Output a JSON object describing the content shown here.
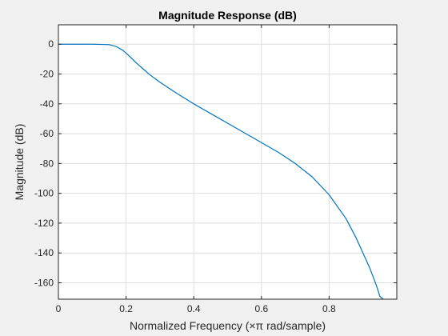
{
  "chart_data": {
    "type": "line",
    "title": "Magnitude Response (dB)",
    "xlabel": "Normalized Frequency (×π rad/sample)",
    "ylabel": "Magnitude (dB)",
    "xlim": [
      0,
      1
    ],
    "ylim": [
      -171,
      13
    ],
    "xticks": [
      0,
      0.2,
      0.4,
      0.6,
      0.8
    ],
    "xtick_labels": [
      "0",
      "0.2",
      "0.4",
      "0.6",
      "0.8"
    ],
    "yticks": [
      0,
      -20,
      -40,
      -60,
      -80,
      -100,
      -120,
      -140,
      -160
    ],
    "ytick_labels": [
      "0",
      "-20",
      "-40",
      "-60",
      "-80",
      "-100",
      "-120",
      "-140",
      "-160"
    ],
    "grid": true,
    "series": [
      {
        "color": "#0072bd",
        "x": [
          0,
          0.05,
          0.1,
          0.15,
          0.17,
          0.19,
          0.21,
          0.23,
          0.25,
          0.27,
          0.3,
          0.35,
          0.4,
          0.45,
          0.5,
          0.55,
          0.6,
          0.65,
          0.7,
          0.75,
          0.8,
          0.85,
          0.88,
          0.9,
          0.92,
          0.94,
          0.95,
          0.96
        ],
        "y": [
          0,
          0,
          0,
          -0.3,
          -1.5,
          -4,
          -8,
          -12.5,
          -16.5,
          -20.5,
          -25.5,
          -33,
          -40,
          -46.5,
          -53,
          -59.5,
          -66,
          -72.5,
          -80,
          -89,
          -101,
          -117,
          -130,
          -140,
          -150,
          -162,
          -169,
          -171
        ]
      }
    ]
  },
  "colors": {
    "figure_background": "#f0f0f0",
    "axes_background": "#ffffff",
    "grid": "#dedede",
    "axis": "#262626"
  }
}
